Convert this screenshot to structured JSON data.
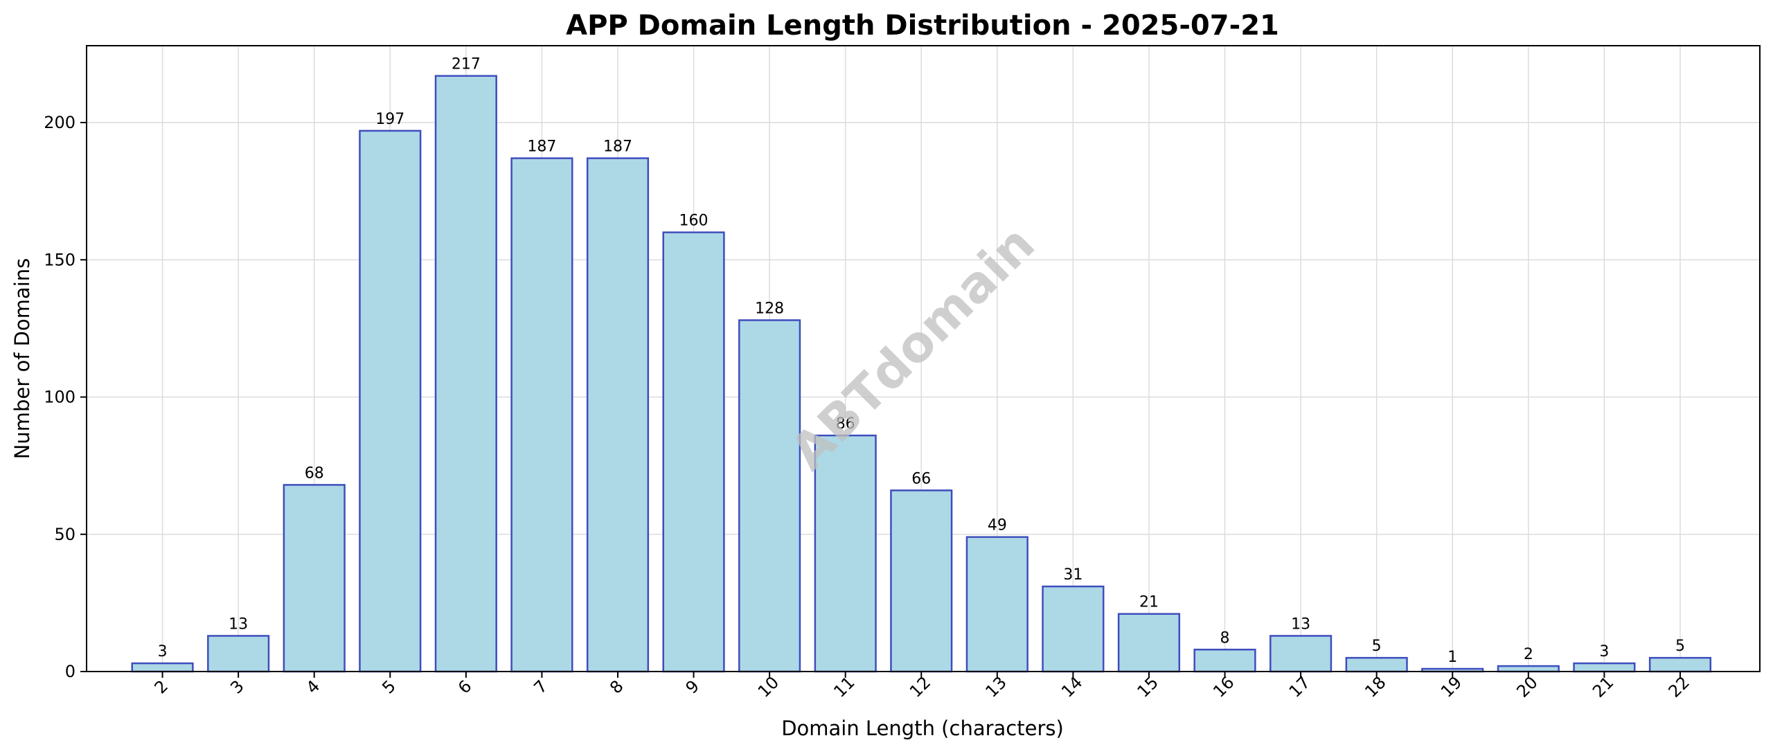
{
  "chart_data": {
    "type": "bar",
    "title": "APP Domain Length Distribution - 2025-07-21",
    "xlabel": "Domain Length (characters)",
    "ylabel": "Number of Domains",
    "categories": [
      "2",
      "3",
      "4",
      "5",
      "6",
      "7",
      "8",
      "9",
      "10",
      "11",
      "12",
      "13",
      "14",
      "15",
      "16",
      "17",
      "18",
      "19",
      "20",
      "21",
      "22"
    ],
    "values": [
      3,
      13,
      68,
      197,
      217,
      187,
      187,
      160,
      128,
      86,
      66,
      49,
      31,
      21,
      8,
      13,
      5,
      1,
      2,
      3,
      5
    ],
    "ylim": [
      0,
      228
    ],
    "yticks": [
      0,
      50,
      100,
      150,
      200
    ],
    "grid": true,
    "data_labels": true,
    "colors": {
      "bar_fill": "#add8e6",
      "bar_edge": "#3f4dbd"
    }
  },
  "watermark": "ABTdomain"
}
